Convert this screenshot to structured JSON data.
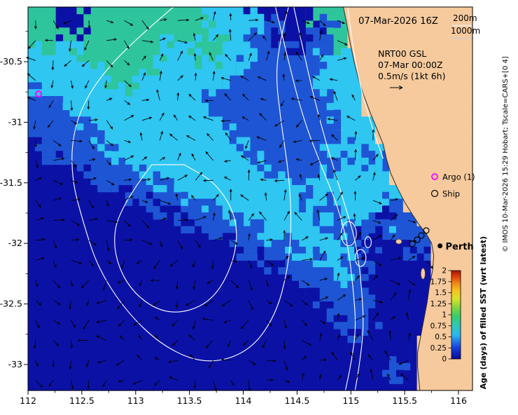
{
  "figure": {
    "timestamp": "07-Mar-2026 16Z",
    "depth_labels": {
      "d200": "200m",
      "d1000": "1000m"
    },
    "model": {
      "name": "NRT00 GSL",
      "valid_time": "07-Mar 00:00Z",
      "vector_scale": "0.5m/s (1kt 6h)"
    },
    "legend": {
      "argo": "Argo (1)",
      "ship": "Ship"
    },
    "city_label": "Perth",
    "colorbar_title": "Age (days) of filled SST (wrt latest)",
    "credit": "© IMOS 10-Mar-2026 15:29 Hobart; Tscale=CARS+[0 4]"
  },
  "axes": {
    "x_ticks": [
      {
        "v": 112,
        "label": "112"
      },
      {
        "v": 112.5,
        "label": "112.5"
      },
      {
        "v": 113,
        "label": "113"
      },
      {
        "v": 113.5,
        "label": "113.5"
      },
      {
        "v": 114,
        "label": "114"
      },
      {
        "v": 114.5,
        "label": "114.5"
      },
      {
        "v": 115,
        "label": "115"
      },
      {
        "v": 115.5,
        "label": "115.5"
      },
      {
        "v": 116,
        "label": "116"
      }
    ],
    "y_ticks": [
      {
        "v": -30.5,
        "label": "-30.5"
      },
      {
        "v": -31,
        "label": "-31"
      },
      {
        "v": -31.5,
        "label": "-31.5"
      },
      {
        "v": -32,
        "label": "-32"
      },
      {
        "v": -32.5,
        "label": "-32.5"
      },
      {
        "v": -33,
        "label": "-33"
      }
    ]
  },
  "chart_data": {
    "type": "heatmap",
    "title": "Age (days) of filled SST (wrt latest)",
    "lon_range": [
      112,
      116.13
    ],
    "lat_range": [
      -33.21,
      -30.05
    ],
    "value_units": "days",
    "colorbar": {
      "range": [
        0,
        2
      ],
      "tick_labels": [
        "2",
        "1.75",
        "1.5",
        "1.25",
        "1",
        "0.75",
        "0.5",
        "0.25",
        "0"
      ],
      "tick_color": "#bb3311",
      "stops": [
        [
          0,
          "#0a0a96"
        ],
        [
          0.13,
          "#1640dc"
        ],
        [
          0.27,
          "#2bb8f0"
        ],
        [
          0.38,
          "#2fc8b4"
        ],
        [
          0.48,
          "#36cc6e"
        ],
        [
          0.58,
          "#7fd73f"
        ],
        [
          0.68,
          "#d8e32a"
        ],
        [
          0.77,
          "#f4c51e"
        ],
        [
          0.86,
          "#f08418"
        ],
        [
          0.93,
          "#e0400c"
        ],
        [
          1,
          "#a81200"
        ]
      ]
    },
    "palette": {
      "0": "#0c11a6",
      "1": "#1e55d5",
      "2": "#2fc6f2",
      "3": "#2ec59d",
      "L": "#f6ca9d"
    },
    "class_values_days": {
      "0": "0-0.25",
      "1": "0.25-0.5",
      "2": "0.5-0.75",
      "3": "0.75-1.25"
    },
    "grid_cols": 32,
    "grid_rows": 28,
    "grid_rle": [
      "2:3,2:0,9:3,3:2,4:0,3:3,9:L",
      "2:3,2:0,9:3,4:2,1:1,3:0,1:1,1:3,9:L",
      "10:3,2:2,2:3,2:2,2:1,2:0,2:1,1:3,9:L",
      "4:2,6:3,2:2,2:3,2:2,5:1,3:2,8:L",
      "5:2,4:3,6:2,6:1,3:2,8:L",
      "6:2,2:3,6:2,7:1,3:2,8:L",
      "1:1,12:2,9:1,2:2,8:L",
      "3:1,10:2,9:1,2:2,8:L",
      "4:1,10:2,8:1,3:2,7:L",
      "5:1,10:2,7:1,3:2,7:L",
      "1:0,5:1,10:2,5:1,2:2,1:1,2:2,6:L",
      "3:0,4:1,10:2,5:1,2:2,2:1,6:L",
      "5:0,4:1,9:2,3:1,5:2,6:L",
      "7:0,4:1,8:2,1:1,7:2,5:L",
      "9:0,4:1,7:2,2:1,3:2,2:1,5:L",
      "11:0,4:1,6:2,1:1,2:2,1:1,1:0,2:1,4:L",
      "13:0,4:1,5:2,2:1,1:0,1:1,1:2,2:1,3:L",
      "15:0,4:1,4:2,1:1,1:0,1:1,1:0,2:1,3:L",
      "17:0,4:1,2:2,2:1,4:0,3:L",
      "19:0,3:1,1:2,1:1,5:0,3:L",
      "20:0,4:1,5:0,3:L",
      "21:0,4:1,4:0,3:L",
      "22:0,3:1,4:0,3:L",
      "23:0,2:1,4:0,3:L",
      "28:0,4:L",
      "28:0,4:L",
      "26:0,1:1,1:0,4:L",
      "28:0,4:L"
    ],
    "coast": [
      [
        114.93,
        -30.05
      ],
      [
        114.96,
        -30.18
      ],
      [
        114.99,
        -30.33
      ],
      [
        115.03,
        -30.5
      ],
      [
        115.07,
        -30.64
      ],
      [
        115.12,
        -30.78
      ],
      [
        115.18,
        -30.92
      ],
      [
        115.24,
        -31.05
      ],
      [
        115.3,
        -31.18
      ],
      [
        115.33,
        -31.3
      ],
      [
        115.37,
        -31.42
      ],
      [
        115.43,
        -31.54
      ],
      [
        115.5,
        -31.66
      ],
      [
        115.57,
        -31.76
      ],
      [
        115.63,
        -31.84
      ],
      [
        115.7,
        -31.92
      ],
      [
        115.75,
        -32.0
      ],
      [
        115.77,
        -32.1
      ],
      [
        115.76,
        -32.22
      ],
      [
        115.73,
        -32.35
      ],
      [
        115.71,
        -32.48
      ],
      [
        115.68,
        -32.62
      ],
      [
        115.65,
        -32.76
      ],
      [
        115.62,
        -32.9
      ],
      [
        115.62,
        -33.02
      ],
      [
        115.64,
        -33.21
      ]
    ],
    "islands": [
      {
        "c": [
          115.445,
          -31.985
        ],
        "r": [
          0.028,
          0.02
        ]
      },
      {
        "c": [
          115.67,
          -32.25
        ],
        "r": [
          0.02,
          0.045
        ]
      }
    ],
    "contours": [
      {
        "name": "1000m-outer",
        "closed": false,
        "pts": [
          [
            113.35,
            -30.05
          ],
          [
            112.95,
            -30.35
          ],
          [
            112.6,
            -30.7
          ],
          [
            112.42,
            -31.05
          ],
          [
            112.4,
            -31.45
          ],
          [
            112.52,
            -31.85
          ],
          [
            112.65,
            -32.2
          ],
          [
            112.9,
            -32.55
          ],
          [
            113.25,
            -32.85
          ],
          [
            113.65,
            -33.0
          ],
          [
            114.05,
            -32.9
          ],
          [
            114.3,
            -32.6
          ],
          [
            114.42,
            -32.2
          ],
          [
            114.45,
            -31.8
          ],
          [
            114.42,
            -31.4
          ],
          [
            114.35,
            -31.0
          ],
          [
            114.3,
            -30.6
          ],
          [
            114.35,
            -30.3
          ],
          [
            114.42,
            -30.05
          ]
        ]
      },
      {
        "name": "1000m-inner",
        "closed": true,
        "pts": [
          [
            113.15,
            -31.35
          ],
          [
            112.85,
            -31.7
          ],
          [
            112.78,
            -32.05
          ],
          [
            112.95,
            -32.4
          ],
          [
            113.3,
            -32.6
          ],
          [
            113.7,
            -32.5
          ],
          [
            113.92,
            -32.15
          ],
          [
            113.95,
            -31.8
          ],
          [
            113.75,
            -31.5
          ],
          [
            113.45,
            -31.35
          ]
        ]
      },
      {
        "name": "200m-a",
        "closed": false,
        "pts": [
          [
            114.3,
            -30.05
          ],
          [
            114.42,
            -30.5
          ],
          [
            114.55,
            -30.95
          ],
          [
            114.72,
            -31.35
          ],
          [
            114.88,
            -31.7
          ],
          [
            114.97,
            -32.0
          ],
          [
            115.02,
            -32.35
          ],
          [
            115.05,
            -32.7
          ],
          [
            115.0,
            -33.0
          ],
          [
            114.95,
            -33.21
          ]
        ]
      },
      {
        "name": "200m-b",
        "closed": false,
        "pts": [
          [
            114.47,
            -30.05
          ],
          [
            114.58,
            -30.5
          ],
          [
            114.7,
            -30.95
          ],
          [
            114.83,
            -31.35
          ],
          [
            114.95,
            -31.7
          ],
          [
            115.05,
            -32.0
          ],
          [
            115.1,
            -32.35
          ],
          [
            115.12,
            -32.7
          ],
          [
            115.08,
            -33.0
          ],
          [
            115.04,
            -33.21
          ]
        ]
      },
      {
        "name": "coastal-short",
        "closed": false,
        "pts": [
          [
            114.97,
            -30.05
          ],
          [
            115.02,
            -30.4
          ],
          [
            115.1,
            -30.75
          ],
          [
            115.2,
            -31.05
          ],
          [
            115.3,
            -31.3
          ]
        ]
      }
    ],
    "contour_ellipses": [
      {
        "c": [
          114.98,
          -31.92
        ],
        "r": [
          0.07,
          0.1
        ]
      },
      {
        "c": [
          115.09,
          -32.12
        ],
        "r": [
          0.05,
          0.07
        ]
      },
      {
        "c": [
          115.16,
          -31.99
        ],
        "r": [
          0.03,
          0.045
        ]
      }
    ],
    "markers": {
      "argo": {
        "lon": 112.098,
        "lat": -30.766,
        "color": "#ff00ff"
      },
      "ships": [
        [
          115.7,
          -31.894
        ],
        [
          115.655,
          -31.935
        ],
        [
          115.616,
          -31.97
        ],
        [
          115.571,
          -32.004
        ]
      ],
      "perth": {
        "lon": 115.828,
        "lat": -32.02
      }
    },
    "vectors": {
      "reference": "0.5m/s (1kt 6h)",
      "spacing_deg": 0.165
    }
  }
}
